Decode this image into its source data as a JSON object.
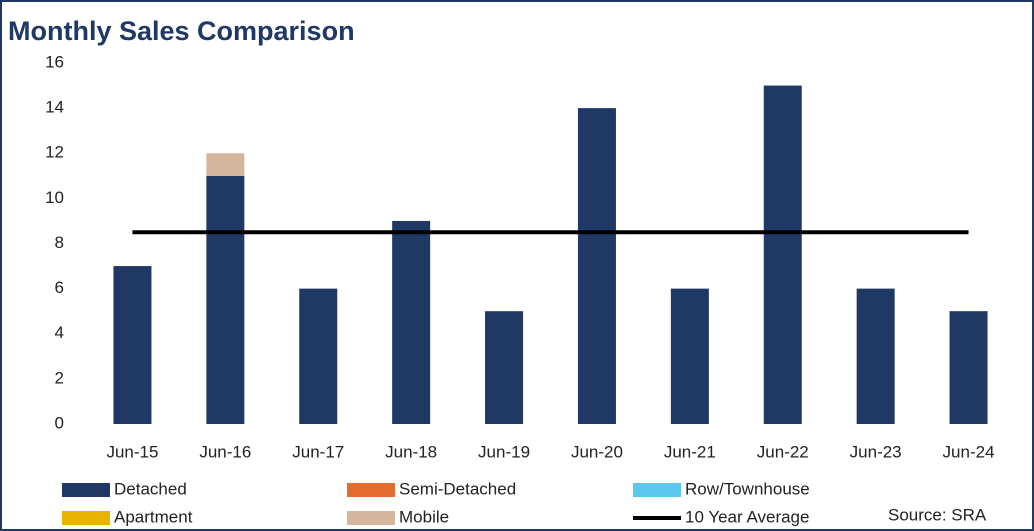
{
  "chart_data": {
    "type": "bar",
    "stacked": true,
    "title": "Monthly Sales Comparison",
    "categories": [
      "Jun-15",
      "Jun-16",
      "Jun-17",
      "Jun-18",
      "Jun-19",
      "Jun-20",
      "Jun-21",
      "Jun-22",
      "Jun-23",
      "Jun-24"
    ],
    "series": [
      {
        "name": "Detached",
        "color": "#203864",
        "values": [
          7,
          11,
          6,
          9,
          5,
          14,
          6,
          15,
          6,
          5
        ]
      },
      {
        "name": "Semi-Detached",
        "color": "#e46c2f",
        "values": [
          0,
          0,
          0,
          0,
          0,
          0,
          0,
          0,
          0,
          0
        ]
      },
      {
        "name": "Row/Townhouse",
        "color": "#5bc8f0",
        "values": [
          0,
          0,
          0,
          0,
          0,
          0,
          0,
          0,
          0,
          0
        ]
      },
      {
        "name": "Apartment",
        "color": "#e8b400",
        "values": [
          0,
          0,
          0,
          0,
          0,
          0,
          0,
          0,
          0,
          0
        ]
      },
      {
        "name": "Mobile",
        "color": "#d4b59e",
        "values": [
          0,
          1,
          0,
          0,
          0,
          0,
          0,
          0,
          0,
          0
        ]
      },
      {
        "name": "10 Year Average",
        "color": "#000000",
        "type": "line",
        "values": [
          8.5,
          8.5,
          8.5,
          8.5,
          8.5,
          8.5,
          8.5,
          8.5,
          8.5,
          8.5
        ]
      }
    ],
    "ylim": [
      0,
      16
    ],
    "yticks": [
      0,
      2,
      4,
      6,
      8,
      10,
      12,
      14,
      16
    ],
    "grid": false,
    "source": "Source: SRA"
  }
}
